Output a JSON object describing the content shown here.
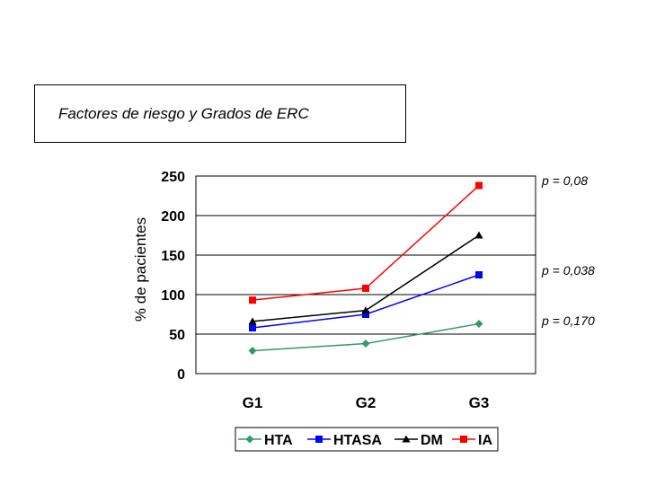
{
  "chart_data": {
    "type": "line",
    "title": "Factores de riesgo y Grados de  ERC",
    "ylabel": "% de pacientes",
    "xlabel": "",
    "categories": [
      "G1",
      "G2",
      "G3"
    ],
    "ylim": [
      0,
      250
    ],
    "yticks": [
      0,
      50,
      100,
      150,
      200,
      250
    ],
    "grid": true,
    "legend_position": "bottom",
    "series": [
      {
        "name": "HTA",
        "values": [
          29,
          38,
          63
        ],
        "color": "#339966",
        "marker": "diamond"
      },
      {
        "name": "HTASA",
        "values": [
          58,
          75,
          125
        ],
        "color": "#0000ff",
        "marker": "square"
      },
      {
        "name": "DM",
        "values": [
          66,
          80,
          175
        ],
        "color": "#000000",
        "marker": "triangle"
      },
      {
        "name": "IA",
        "values": [
          93,
          108,
          238
        ],
        "color": "#ff0000",
        "marker": "square"
      }
    ],
    "annotations": [
      "p = 0,08",
      "p = 0,038",
      "p  = 0,170"
    ]
  }
}
